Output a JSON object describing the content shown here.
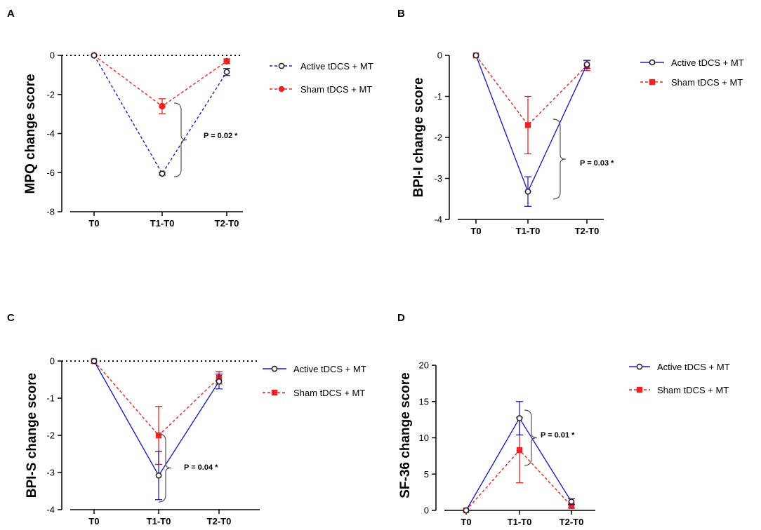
{
  "chart_data": [
    {
      "panel": "A",
      "type": "line",
      "categories": [
        "T0",
        "T1-T0",
        "T2-T0"
      ],
      "ylabel": "MPQ change score",
      "ylim": [
        -8,
        0
      ],
      "yticks": [
        0,
        -2,
        -4,
        -6,
        -8
      ],
      "series": [
        {
          "name": "Active tDCS + MT",
          "values": [
            0,
            -6.05,
            -0.85
          ],
          "errors": [
            0,
            0.08,
            0.18
          ],
          "color": "#1f1fc0",
          "marker": "circle",
          "dashed": true
        },
        {
          "name": "Sham tDCS + MT",
          "values": [
            0,
            -2.6,
            -0.3
          ],
          "errors": [
            0,
            0.38,
            0.12
          ],
          "color": "#ee2222",
          "marker": "dot",
          "dashed": true
        }
      ],
      "annotation": "P = 0.02 *"
    },
    {
      "panel": "B",
      "type": "line",
      "categories": [
        "T0",
        "T1-T0",
        "T2-T0"
      ],
      "ylabel": "BPI-I change score",
      "ylim": [
        -4,
        0
      ],
      "yticks": [
        0,
        -1,
        -2,
        -3,
        -4
      ],
      "series": [
        {
          "name": "Active tDCS + MT",
          "values": [
            0,
            -3.32,
            -0.22
          ],
          "errors": [
            0,
            0.36,
            0.1
          ],
          "color": "#1f1fc0",
          "marker": "circle",
          "dashed": false
        },
        {
          "name": "Sham tDCS + MT",
          "values": [
            0,
            -1.7,
            -0.25
          ],
          "errors": [
            0,
            0.7,
            0.12
          ],
          "color": "#ee2222",
          "marker": "square",
          "dashed": true
        }
      ],
      "annotation": "P = 0.03 *"
    },
    {
      "panel": "C",
      "type": "line",
      "categories": [
        "T0",
        "T1-T0",
        "T2-T0"
      ],
      "ylabel": "BPI-S change score",
      "ylim": [
        -4,
        0
      ],
      "yticks": [
        0,
        -1,
        -2,
        -3,
        -4
      ],
      "series": [
        {
          "name": "Active tDCS + MT",
          "values": [
            0,
            -3.08,
            -0.55
          ],
          "errors": [
            0,
            0.65,
            0.2
          ],
          "color": "#1f1fc0",
          "marker": "circle",
          "dashed": false
        },
        {
          "name": "Sham tDCS + MT",
          "values": [
            0,
            -2.0,
            -0.45
          ],
          "errors": [
            0,
            0.78,
            0.17
          ],
          "color": "#ee2222",
          "marker": "square",
          "dashed": true
        }
      ],
      "annotation": "P = 0.04 *"
    },
    {
      "panel": "D",
      "type": "line",
      "categories": [
        "T0",
        "T1-T0",
        "T2-T0"
      ],
      "ylabel": "SF-36 change score",
      "ylim": [
        0,
        20
      ],
      "yticks": [
        20,
        15,
        10,
        5,
        0
      ],
      "series": [
        {
          "name": "Active tDCS + MT",
          "values": [
            0,
            12.7,
            1.2
          ],
          "errors": [
            0,
            2.3,
            0.4
          ],
          "color": "#1f1fc0",
          "marker": "circle",
          "dashed": false
        },
        {
          "name": "Sham tDCS + MT",
          "values": [
            0,
            8.3,
            0.6
          ],
          "errors": [
            0,
            4.5,
            0.25
          ],
          "color": "#ee2222",
          "marker": "square",
          "dashed": true
        }
      ],
      "annotation": "P = 0.01 *"
    }
  ]
}
